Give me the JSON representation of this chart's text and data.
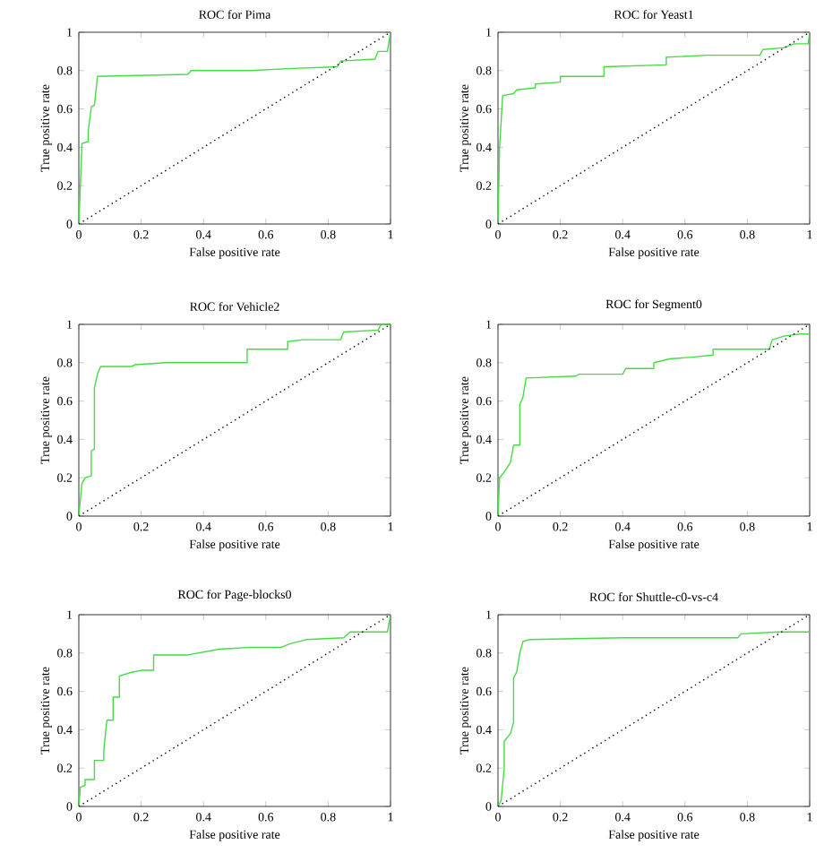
{
  "chart_data": [
    {
      "type": "line",
      "title": "ROC for Pima",
      "xlabel": "False positive rate",
      "ylabel": "True positive rate",
      "xlim": [
        0,
        1
      ],
      "ylim": [
        0,
        1
      ],
      "xticks": [
        0,
        0.2,
        0.4,
        0.6,
        0.8,
        1
      ],
      "yticks": [
        0,
        0.2,
        0.4,
        0.6,
        0.8,
        1
      ],
      "series": [
        {
          "color": "#44dd44",
          "line_style": "solid",
          "x": [
            0,
            0.005,
            0.01,
            0.03,
            0.03,
            0.04,
            0.05,
            0.06,
            0.35,
            0.36,
            0.55,
            0.67,
            0.83,
            0.84,
            0.95,
            0.96,
            0.99,
            1
          ],
          "values": [
            0,
            0.2,
            0.42,
            0.43,
            0.48,
            0.61,
            0.62,
            0.77,
            0.78,
            0.8,
            0.8,
            0.81,
            0.82,
            0.85,
            0.86,
            0.9,
            0.9,
            1
          ]
        },
        {
          "color": "#000000",
          "line_style": "dotted",
          "x": [
            0,
            1
          ],
          "values": [
            0,
            1
          ]
        }
      ]
    },
    {
      "type": "line",
      "title": "ROC for Yeast1",
      "xlabel": "False positive rate",
      "ylabel": "True positive rate",
      "xlim": [
        0,
        1
      ],
      "ylim": [
        0,
        1
      ],
      "xticks": [
        0,
        0.2,
        0.4,
        0.6,
        0.8,
        1
      ],
      "yticks": [
        0,
        0.2,
        0.4,
        0.6,
        0.8,
        1
      ],
      "series": [
        {
          "color": "#44dd44",
          "line_style": "solid",
          "x": [
            0,
            0.005,
            0.015,
            0.05,
            0.06,
            0.12,
            0.12,
            0.2,
            0.2,
            0.34,
            0.34,
            0.54,
            0.54,
            0.67,
            0.84,
            0.85,
            0.92,
            0.95,
            0.995,
            1
          ],
          "values": [
            0,
            0.4,
            0.67,
            0.68,
            0.7,
            0.71,
            0.73,
            0.74,
            0.77,
            0.77,
            0.82,
            0.83,
            0.87,
            0.88,
            0.88,
            0.91,
            0.92,
            0.94,
            0.94,
            1
          ]
        },
        {
          "color": "#000000",
          "line_style": "dotted",
          "x": [
            0,
            1
          ],
          "values": [
            0,
            1
          ]
        }
      ]
    },
    {
      "type": "line",
      "title": "ROC for Vehicle2",
      "xlabel": "False positive rate",
      "ylabel": "True positive rate",
      "xlim": [
        0,
        1
      ],
      "ylim": [
        0,
        1
      ],
      "xticks": [
        0,
        0.2,
        0.4,
        0.6,
        0.8,
        1
      ],
      "yticks": [
        0,
        0.2,
        0.4,
        0.6,
        0.8,
        1
      ],
      "series": [
        {
          "color": "#44dd44",
          "line_style": "solid",
          "x": [
            0,
            0.01,
            0.02,
            0.04,
            0.04,
            0.05,
            0.05,
            0.06,
            0.07,
            0.17,
            0.18,
            0.28,
            0.54,
            0.54,
            0.67,
            0.67,
            0.72,
            0.84,
            0.85,
            0.96,
            0.97,
            1
          ],
          "values": [
            0,
            0.17,
            0.2,
            0.21,
            0.34,
            0.35,
            0.67,
            0.74,
            0.78,
            0.78,
            0.79,
            0.8,
            0.8,
            0.87,
            0.87,
            0.91,
            0.92,
            0.92,
            0.96,
            0.97,
            1,
            1
          ]
        },
        {
          "color": "#000000",
          "line_style": "dotted",
          "x": [
            0,
            1
          ],
          "values": [
            0,
            1
          ]
        }
      ]
    },
    {
      "type": "line",
      "title": "ROC for Segment0",
      "xlabel": "False positive rate",
      "ylabel": "True positive rate",
      "xlim": [
        0,
        1
      ],
      "ylim": [
        0,
        1
      ],
      "xticks": [
        0,
        0.2,
        0.4,
        0.6,
        0.8,
        1
      ],
      "yticks": [
        0,
        0.2,
        0.4,
        0.6,
        0.8,
        1
      ],
      "series": [
        {
          "color": "#44dd44",
          "line_style": "solid",
          "x": [
            0,
            0.005,
            0.02,
            0.04,
            0.05,
            0.07,
            0.07,
            0.08,
            0.09,
            0.25,
            0.26,
            0.4,
            0.41,
            0.5,
            0.5,
            0.55,
            0.63,
            0.69,
            0.69,
            0.87,
            0.88,
            0.92,
            0.97,
            1
          ],
          "values": [
            0,
            0.2,
            0.23,
            0.28,
            0.37,
            0.37,
            0.58,
            0.62,
            0.72,
            0.73,
            0.74,
            0.74,
            0.77,
            0.77,
            0.8,
            0.82,
            0.83,
            0.84,
            0.87,
            0.87,
            0.92,
            0.94,
            0.95,
            0.95
          ]
        },
        {
          "color": "#000000",
          "line_style": "dotted",
          "x": [
            0,
            1
          ],
          "values": [
            0,
            1
          ]
        }
      ]
    },
    {
      "type": "line",
      "title": "ROC for Page-blocks0",
      "xlabel": "False positive rate",
      "ylabel": "True positive rate",
      "xlim": [
        0,
        1
      ],
      "ylim": [
        0,
        1
      ],
      "xticks": [
        0,
        0.2,
        0.4,
        0.6,
        0.8,
        1
      ],
      "yticks": [
        0,
        0.2,
        0.4,
        0.6,
        0.8,
        1
      ],
      "series": [
        {
          "color": "#44dd44",
          "line_style": "solid",
          "x": [
            0,
            0.005,
            0.02,
            0.02,
            0.05,
            0.05,
            0.08,
            0.08,
            0.09,
            0.11,
            0.11,
            0.13,
            0.13,
            0.17,
            0.2,
            0.24,
            0.24,
            0.35,
            0.45,
            0.55,
            0.65,
            0.68,
            0.73,
            0.85,
            0.87,
            0.99,
            1
          ],
          "values": [
            0,
            0.1,
            0.11,
            0.14,
            0.14,
            0.24,
            0.24,
            0.29,
            0.45,
            0.45,
            0.57,
            0.57,
            0.68,
            0.7,
            0.71,
            0.71,
            0.79,
            0.79,
            0.82,
            0.83,
            0.83,
            0.85,
            0.87,
            0.88,
            0.91,
            0.91,
            1
          ]
        },
        {
          "color": "#000000",
          "line_style": "dotted",
          "x": [
            0,
            1
          ],
          "values": [
            0,
            1
          ]
        }
      ]
    },
    {
      "type": "line",
      "title": "ROC for Shuttle-c0-vs-c4",
      "xlabel": "False positive rate",
      "ylabel": "True positive rate",
      "xlim": [
        0,
        1
      ],
      "ylim": [
        0,
        1
      ],
      "xticks": [
        0,
        0.2,
        0.4,
        0.6,
        0.8,
        1
      ],
      "yticks": [
        0,
        0.2,
        0.4,
        0.6,
        0.8,
        1
      ],
      "series": [
        {
          "color": "#44dd44",
          "line_style": "solid",
          "x": [
            0,
            0.01,
            0.02,
            0.02,
            0.04,
            0.05,
            0.05,
            0.06,
            0.07,
            0.08,
            0.1,
            0.4,
            0.77,
            0.78,
            0.9,
            1
          ],
          "values": [
            0,
            0.03,
            0.2,
            0.34,
            0.38,
            0.44,
            0.67,
            0.7,
            0.8,
            0.86,
            0.87,
            0.88,
            0.88,
            0.9,
            0.91,
            0.91
          ]
        },
        {
          "color": "#000000",
          "line_style": "dotted",
          "x": [
            0,
            1
          ],
          "values": [
            0,
            1
          ]
        }
      ]
    }
  ]
}
